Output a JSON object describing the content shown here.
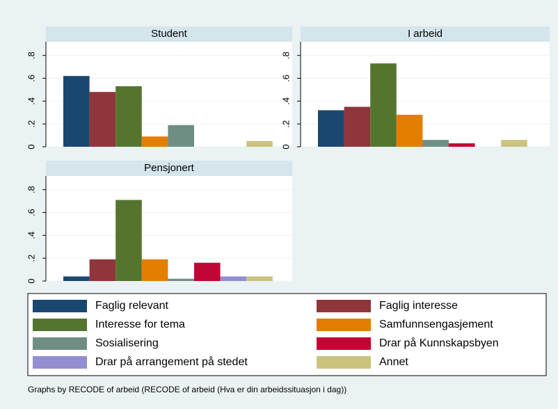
{
  "chart_data": [
    {
      "type": "bar",
      "title": "Student",
      "values": [
        0.62,
        0.48,
        0.53,
        0.09,
        0.19,
        0,
        0,
        0.05
      ],
      "ylim": [
        0,
        0.92
      ],
      "yticks": [
        0,
        {
          "value": 0.2,
          "label": ".2"
        },
        {
          "value": 0.4,
          "label": ".4"
        },
        {
          "value": 0.6,
          "label": ".6"
        },
        {
          "value": 0.8,
          "label": ".8"
        }
      ],
      "grid": true
    },
    {
      "type": "bar",
      "title": "I arbeid",
      "values": [
        0.32,
        0.35,
        0.73,
        0.28,
        0.06,
        0.03,
        0,
        0.06
      ],
      "ylim": [
        0,
        0.92
      ],
      "yticks": [
        0,
        {
          "value": 0.2,
          "label": ".2"
        },
        {
          "value": 0.4,
          "label": ".4"
        },
        {
          "value": 0.6,
          "label": ".6"
        },
        {
          "value": 0.8,
          "label": ".8"
        }
      ],
      "grid": true
    },
    {
      "type": "bar",
      "title": "Pensjonert",
      "values": [
        0.04,
        0.19,
        0.71,
        0.19,
        0.02,
        0.16,
        0.04,
        0.04
      ],
      "ylim": [
        0,
        0.92
      ],
      "yticks": [
        0,
        {
          "value": 0.2,
          "label": ".2"
        },
        {
          "value": 0.4,
          "label": ".4"
        },
        {
          "value": 0.6,
          "label": ".6"
        },
        {
          "value": 0.8,
          "label": ".8"
        }
      ],
      "grid": true
    }
  ],
  "legend": {
    "series": [
      {
        "name": "Faglig relevant",
        "color": "#1a476f"
      },
      {
        "name": "Faglig interesse",
        "color": "#90353b"
      },
      {
        "name": "Interesse for tema",
        "color": "#55752f"
      },
      {
        "name": "Samfunnsengasjement",
        "color": "#e37e00"
      },
      {
        "name": "Sosialisering",
        "color": "#6e8e84"
      },
      {
        "name": "Drar på Kunnskapsbyen",
        "color": "#c10534"
      },
      {
        "name": "Drar på arrangement på stedet",
        "color": "#938dd2"
      },
      {
        "name": "Annet",
        "color": "#cac27e"
      }
    ]
  },
  "note": "Graphs by RECODE of arbeid (RECODE of arbeid (Hva er din arbeidssituasjon i dag))"
}
